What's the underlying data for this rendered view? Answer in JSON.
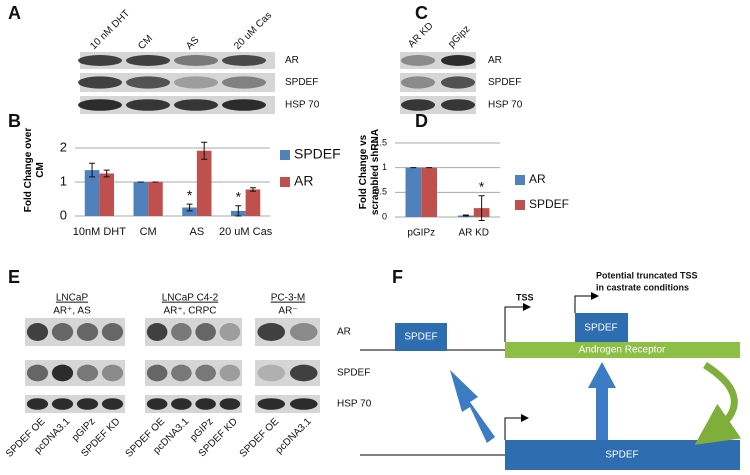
{
  "panels": {
    "a": "A",
    "b": "B",
    "c": "C",
    "d": "D",
    "e": "E",
    "f": "F"
  },
  "blot_a": {
    "lanes": [
      "10 nM DHT",
      "CM",
      "AS",
      "20 uM Cas"
    ],
    "rows": [
      "AR",
      "SPDEF",
      "HSP 70"
    ]
  },
  "blot_c": {
    "lanes": [
      "AR KD",
      "pGipz"
    ],
    "rows": [
      "AR",
      "SPDEF",
      "HSP 70"
    ]
  },
  "blot_e": {
    "groups": [
      {
        "name": "LNCaP",
        "subtitle": "AR⁺, AS",
        "lanes": [
          "SPDEF OE",
          "pcDNA3.1",
          "pGIPz",
          "SPDEF KD"
        ]
      },
      {
        "name": "LNCaP C4-2",
        "subtitle": "AR⁺, CRPC",
        "lanes": [
          "SPDEF OE",
          "pcDNA3.1",
          "pGIPz",
          "SPDEF KD"
        ]
      },
      {
        "name": "PC-3-M",
        "subtitle": "AR⁻",
        "lanes": [
          "SPDEF OE",
          "pcDNA3.1"
        ]
      }
    ],
    "rows": [
      "AR",
      "SPDEF",
      "HSP 70"
    ]
  },
  "diagram_f": {
    "upstream_box": "SPDEF",
    "truncated_box": "SPDEF",
    "ar_gene": "Androgen Receptor",
    "spdef_gene": "SPDEF",
    "tss": "TSS",
    "truncated_tss": [
      "Potential truncated TSS",
      "in castrate conditions"
    ]
  },
  "chart_data": [
    {
      "type": "bar",
      "ylabel": "Fold Change over CM",
      "categories": [
        "10nM DHT",
        "CM",
        "AS",
        "20 uM Cas"
      ],
      "series": [
        {
          "name": "SPDEF",
          "color": "#4f81bd",
          "values": [
            1.35,
            1,
            0.25,
            0.15
          ],
          "errors": [
            0.2,
            0,
            0.1,
            0.15
          ]
        },
        {
          "name": "AR",
          "color": "#c0504d",
          "values": [
            1.25,
            1,
            1.92,
            0.78
          ],
          "errors": [
            0.1,
            0,
            0.25,
            0.05
          ]
        }
      ],
      "ylim": [
        0,
        2.5
      ],
      "yticks": [
        0,
        1,
        2
      ],
      "grid": true,
      "legend": "right",
      "annotations": [
        {
          "text": "*",
          "category": "AS",
          "series": "SPDEF"
        },
        {
          "text": "*",
          "category": "20 uM Cas",
          "series": "SPDEF"
        }
      ]
    },
    {
      "type": "bar",
      "ylabel": "Fold Change vs scrambled shRNA",
      "categories": [
        "pGIPz",
        "AR KD"
      ],
      "series": [
        {
          "name": "AR",
          "color": "#4f81bd",
          "values": [
            1,
            0.03
          ],
          "errors": [
            0,
            0.01
          ]
        },
        {
          "name": "SPDEF",
          "color": "#c0504d",
          "values": [
            1,
            0.18
          ],
          "errors": [
            0,
            0.25
          ]
        }
      ],
      "ylim": [
        0,
        1.5
      ],
      "yticks": [
        0,
        0.5,
        1,
        1.5
      ],
      "grid": true,
      "legend": "right",
      "annotations": [
        {
          "text": "*",
          "category": "AR KD",
          "series": "SPDEF"
        }
      ]
    }
  ]
}
